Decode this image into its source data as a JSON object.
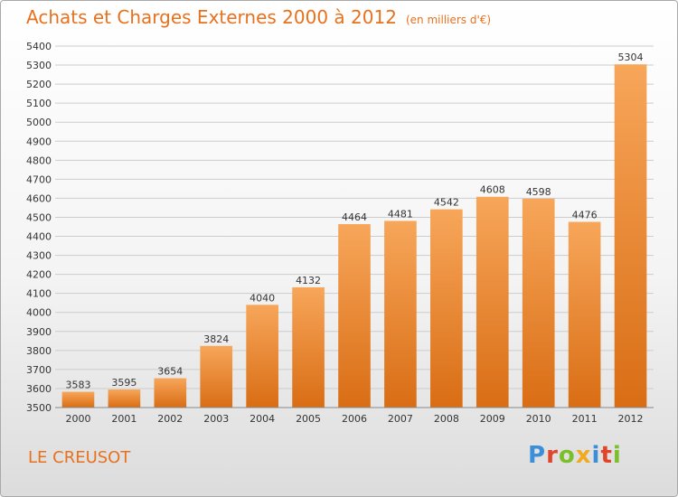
{
  "header": {
    "title": "Achats et Charges Externes 2000 à 2012",
    "unit": "(en milliers d'€)"
  },
  "footer": {
    "town": "LE CREUSOT",
    "logo_text": "Proxiti",
    "logo_colors": [
      "#3a8fd8",
      "#e0452b",
      "#7bbf2a",
      "#f2a922",
      "#3a8fd8",
      "#e0452b",
      "#7bbf2a"
    ]
  },
  "colors": {
    "title": "#e8711e",
    "bar_light": "#f7a65a",
    "bar_dark": "#d96d14",
    "grid": "#cccccc"
  },
  "chart_data": {
    "type": "bar",
    "categories": [
      "2000",
      "2001",
      "2002",
      "2003",
      "2004",
      "2005",
      "2006",
      "2007",
      "2008",
      "2009",
      "2010",
      "2011",
      "2012"
    ],
    "values": [
      3583,
      3595,
      3654,
      3824,
      4040,
      4132,
      4464,
      4481,
      4542,
      4608,
      4598,
      4476,
      5304
    ],
    "ylim": [
      3500,
      5400
    ],
    "yticks": [
      3500,
      3600,
      3700,
      3800,
      3900,
      4000,
      4100,
      4200,
      4300,
      4400,
      4500,
      4600,
      4700,
      4800,
      4900,
      5000,
      5100,
      5200,
      5300,
      5400
    ],
    "grid": true,
    "legend": "none"
  }
}
